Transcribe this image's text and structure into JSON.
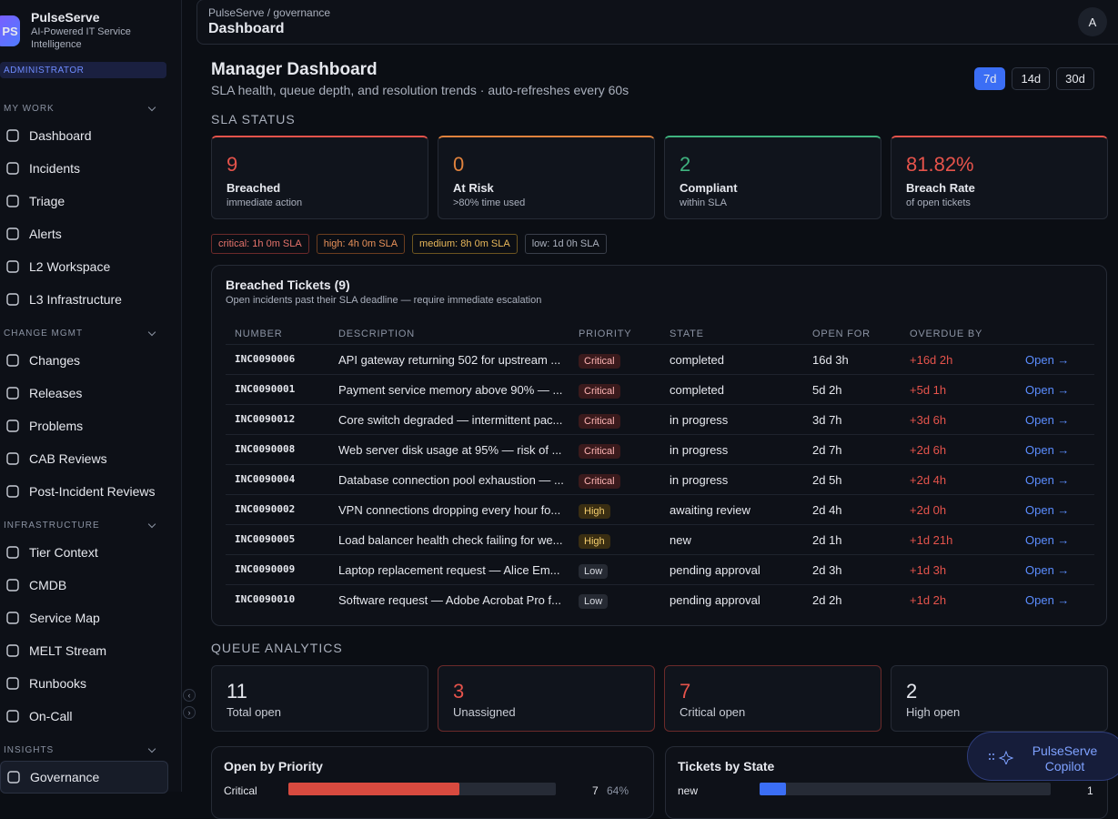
{
  "sidebar": {
    "logo": "PS",
    "name": "PulseServe",
    "tagline": "AI-Powered IT Service Intelligence",
    "role": "ADMINISTRATOR",
    "sections": [
      {
        "title": "MY WORK",
        "items": [
          "Dashboard",
          "Incidents",
          "Triage",
          "Alerts",
          "L2 Workspace",
          "L3 Infrastructure"
        ]
      },
      {
        "title": "CHANGE MGMT",
        "items": [
          "Changes",
          "Releases",
          "Problems",
          "CAB Reviews",
          "Post-Incident Reviews"
        ]
      },
      {
        "title": "INFRASTRUCTURE",
        "items": [
          "Tier Context",
          "CMDB",
          "Service Map",
          "MELT Stream",
          "Runbooks",
          "On-Call"
        ]
      },
      {
        "title": "INSIGHTS",
        "items": [
          "Governance"
        ]
      }
    ]
  },
  "header": {
    "breadcrumb": "PulseServe / governance",
    "title": "Dashboard",
    "avatar": "A"
  },
  "page": {
    "title": "Manager Dashboard",
    "subtitle": "SLA health, queue depth, and resolution trends · auto-refreshes every 60s",
    "ranges": [
      "7d",
      "14d",
      "30d"
    ]
  },
  "sla": {
    "title": "SLA STATUS",
    "cards": [
      {
        "value": 9,
        "label": "Breached",
        "note": "immediate action"
      },
      {
        "value": 0,
        "label": "At Risk",
        "note": ">80% time used"
      },
      {
        "value": 2,
        "label": "Compliant",
        "note": "within SLA"
      },
      {
        "value": "81.82%",
        "label": "Breach Rate",
        "note": "of open tickets"
      }
    ],
    "targets": [
      "critical: 1h 0m SLA",
      "high: 4h 0m SLA",
      "medium: 8h 0m SLA",
      "low: 1d 0h SLA"
    ]
  },
  "breached": {
    "title": "Breached Tickets (9)",
    "subtitle": "Open incidents past their SLA deadline — require immediate escalation",
    "columns": [
      "NUMBER",
      "DESCRIPTION",
      "PRIORITY",
      "STATE",
      "OPEN FOR",
      "OVERDUE BY"
    ],
    "rows": [
      [
        "INC0090006",
        "API gateway returning 502 for upstream ...",
        "Critical",
        "completed",
        "16d 3h",
        "+16d 2h",
        "Open →"
      ],
      [
        "INC0090001",
        "Payment service memory above 90% — ...",
        "Critical",
        "completed",
        "5d 2h",
        "+5d 1h",
        "Open →"
      ],
      [
        "INC0090012",
        "Core switch degraded — intermittent pac...",
        "Critical",
        "in progress",
        "3d 7h",
        "+3d 6h",
        "Open →"
      ],
      [
        "INC0090008",
        "Web server disk usage at 95% — risk of ...",
        "Critical",
        "in progress",
        "2d 7h",
        "+2d 6h",
        "Open →"
      ],
      [
        "INC0090004",
        "Database connection pool exhaustion — ...",
        "Critical",
        "in progress",
        "2d 5h",
        "+2d 4h",
        "Open →"
      ],
      [
        "INC0090002",
        "VPN connections dropping every hour fo...",
        "High",
        "awaiting review",
        "2d 4h",
        "+2d 0h",
        "Open →"
      ],
      [
        "INC0090005",
        "Load balancer health check failing for we...",
        "High",
        "new",
        "2d 1h",
        "+1d 21h",
        "Open →"
      ],
      [
        "INC0090009",
        "Laptop replacement request — Alice Em...",
        "Low",
        "pending approval",
        "2d 3h",
        "+1d 3h",
        "Open →"
      ],
      [
        "INC0090010",
        "Software request — Adobe Acrobat Pro f...",
        "Low",
        "pending approval",
        "2d 2h",
        "+1d 2h",
        "Open →"
      ]
    ]
  },
  "queue": {
    "title": "QUEUE ANALYTICS",
    "cards": [
      {
        "value": 11,
        "label": "Total open"
      },
      {
        "value": 3,
        "label": "Unassigned"
      },
      {
        "value": 7,
        "label": "Critical open"
      },
      {
        "value": 2,
        "label": "High open"
      }
    ]
  },
  "panels": [
    {
      "title": "Open by Priority",
      "rows": [
        {
          "label": "Critical",
          "count": 7,
          "pct": {
            "value": 64,
            "label": "64%"
          }
        }
      ]
    },
    {
      "title": "Tickets by State",
      "rows": [
        {
          "label": "new",
          "count": 1
        }
      ]
    }
  ],
  "copilot": "PulseServe Copilot"
}
